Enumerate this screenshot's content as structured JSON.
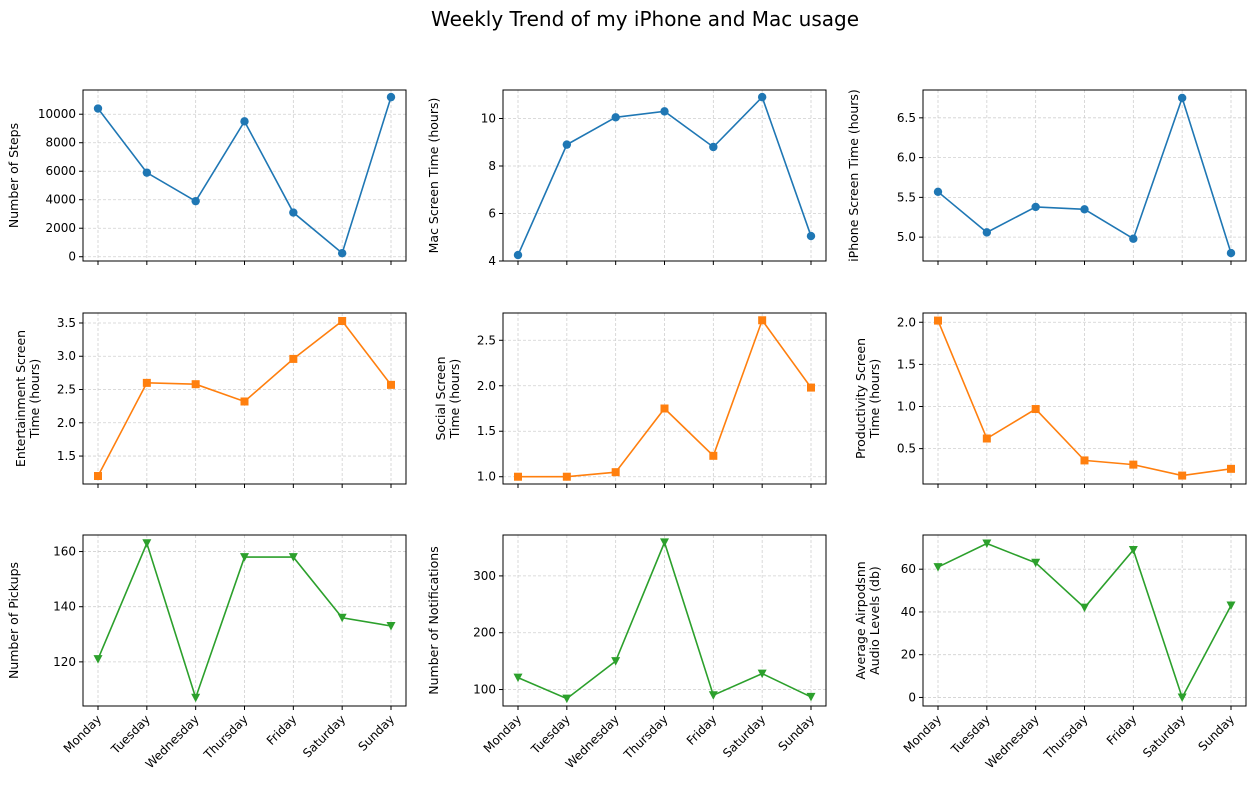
{
  "title": "Weekly Trend of my iPhone and Mac usage",
  "colors": {
    "blue": "#1f77b4",
    "orange": "#ff7f0e",
    "green": "#2ca02c"
  },
  "chart_data": [
    {
      "type": "line",
      "ylabel": [
        "Number of Steps"
      ],
      "color": "blue",
      "marker": "circle",
      "categories": [
        "Monday",
        "Tuesday",
        "Wednesday",
        "Thursday",
        "Friday",
        "Saturday",
        "Sunday"
      ],
      "values": [
        10400,
        5900,
        3900,
        9500,
        3100,
        250,
        11200
      ],
      "ylim": [
        -300,
        11700
      ],
      "yticks": [
        0,
        2000,
        4000,
        6000,
        8000,
        10000
      ],
      "grid": true,
      "show_xlabels": false
    },
    {
      "type": "line",
      "ylabel": [
        "Mac Screen Time (hours)"
      ],
      "color": "blue",
      "marker": "circle",
      "categories": [
        "Monday",
        "Tuesday",
        "Wednesday",
        "Thursday",
        "Friday",
        "Saturday",
        "Sunday"
      ],
      "values": [
        4.25,
        8.9,
        10.05,
        10.3,
        8.8,
        10.9,
        5.05
      ],
      "ylim": [
        4.0,
        11.2
      ],
      "yticks": [
        4,
        6,
        8,
        10
      ],
      "grid": true,
      "show_xlabels": false
    },
    {
      "type": "line",
      "ylabel": [
        "iPhone Screen Time (hours)"
      ],
      "color": "blue",
      "marker": "circle",
      "categories": [
        "Monday",
        "Tuesday",
        "Wednesday",
        "Thursday",
        "Friday",
        "Saturday",
        "Sunday"
      ],
      "values": [
        5.57,
        5.06,
        5.38,
        5.35,
        4.98,
        6.75,
        4.8
      ],
      "ylim": [
        4.7,
        6.85
      ],
      "yticks": [
        5.0,
        5.5,
        6.0,
        6.5
      ],
      "ytick_labels": [
        "5.0",
        "5.5",
        "6.0",
        "6.5"
      ],
      "grid": true,
      "show_xlabels": false
    },
    {
      "type": "line",
      "ylabel": [
        "Entertainment Screen",
        "Time (hours)"
      ],
      "color": "orange",
      "marker": "square",
      "categories": [
        "Monday",
        "Tuesday",
        "Wednesday",
        "Thursday",
        "Friday",
        "Saturday",
        "Sunday"
      ],
      "values": [
        1.2,
        2.6,
        2.58,
        2.32,
        2.96,
        3.53,
        2.57
      ],
      "ylim": [
        1.08,
        3.65
      ],
      "yticks": [
        1.5,
        2.0,
        2.5,
        3.0,
        3.5
      ],
      "ytick_labels": [
        "1.5",
        "2.0",
        "2.5",
        "3.0",
        "3.5"
      ],
      "grid": true,
      "show_xlabels": false
    },
    {
      "type": "line",
      "ylabel": [
        "Social Screen",
        "Time (hours)"
      ],
      "color": "orange",
      "marker": "square",
      "categories": [
        "Monday",
        "Tuesday",
        "Wednesday",
        "Thursday",
        "Friday",
        "Saturday",
        "Sunday"
      ],
      "values": [
        1.0,
        1.0,
        1.05,
        1.75,
        1.23,
        2.72,
        1.98
      ],
      "ylim": [
        0.92,
        2.8
      ],
      "yticks": [
        1.0,
        1.5,
        2.0,
        2.5
      ],
      "ytick_labels": [
        "1.0",
        "1.5",
        "2.0",
        "2.5"
      ],
      "grid": true,
      "show_xlabels": false
    },
    {
      "type": "line",
      "ylabel": [
        "Productivity Screen",
        "Time (hours)"
      ],
      "color": "orange",
      "marker": "square",
      "categories": [
        "Monday",
        "Tuesday",
        "Wednesday",
        "Thursday",
        "Friday",
        "Saturday",
        "Sunday"
      ],
      "values": [
        2.02,
        0.62,
        0.97,
        0.36,
        0.31,
        0.18,
        0.26
      ],
      "ylim": [
        0.08,
        2.11
      ],
      "yticks": [
        0.5,
        1.0,
        1.5,
        2.0
      ],
      "ytick_labels": [
        "0.5",
        "1.0",
        "1.5",
        "2.0"
      ],
      "grid": true,
      "show_xlabels": false
    },
    {
      "type": "line",
      "ylabel": [
        "Number of Pickups"
      ],
      "color": "green",
      "marker": "triangle-down",
      "categories": [
        "Monday",
        "Tuesday",
        "Wednesday",
        "Thursday",
        "Friday",
        "Saturday",
        "Sunday"
      ],
      "values": [
        121,
        163,
        107,
        158,
        158,
        136,
        133
      ],
      "ylim": [
        104,
        166
      ],
      "yticks": [
        120,
        140,
        160
      ],
      "grid": true,
      "show_xlabels": true
    },
    {
      "type": "line",
      "ylabel": [
        "Number of Notifications"
      ],
      "color": "green",
      "marker": "triangle-down",
      "categories": [
        "Monday",
        "Tuesday",
        "Wednesday",
        "Thursday",
        "Friday",
        "Saturday",
        "Sunday"
      ],
      "values": [
        121,
        84,
        150,
        359,
        90,
        128,
        87
      ],
      "ylim": [
        71,
        372
      ],
      "yticks": [
        100,
        200,
        300
      ],
      "grid": true,
      "show_xlabels": true
    },
    {
      "type": "line",
      "ylabel": [
        "Average Airpodsnn",
        "Audio Levels (db)"
      ],
      "color": "green",
      "marker": "triangle-down",
      "categories": [
        "Monday",
        "Tuesday",
        "Wednesday",
        "Thursday",
        "Friday",
        "Saturday",
        "Sunday"
      ],
      "values": [
        61,
        72,
        63,
        42,
        69,
        0,
        43
      ],
      "ylim": [
        -4,
        76
      ],
      "yticks": [
        0,
        20,
        40,
        60
      ],
      "grid": true,
      "show_xlabels": true
    }
  ]
}
